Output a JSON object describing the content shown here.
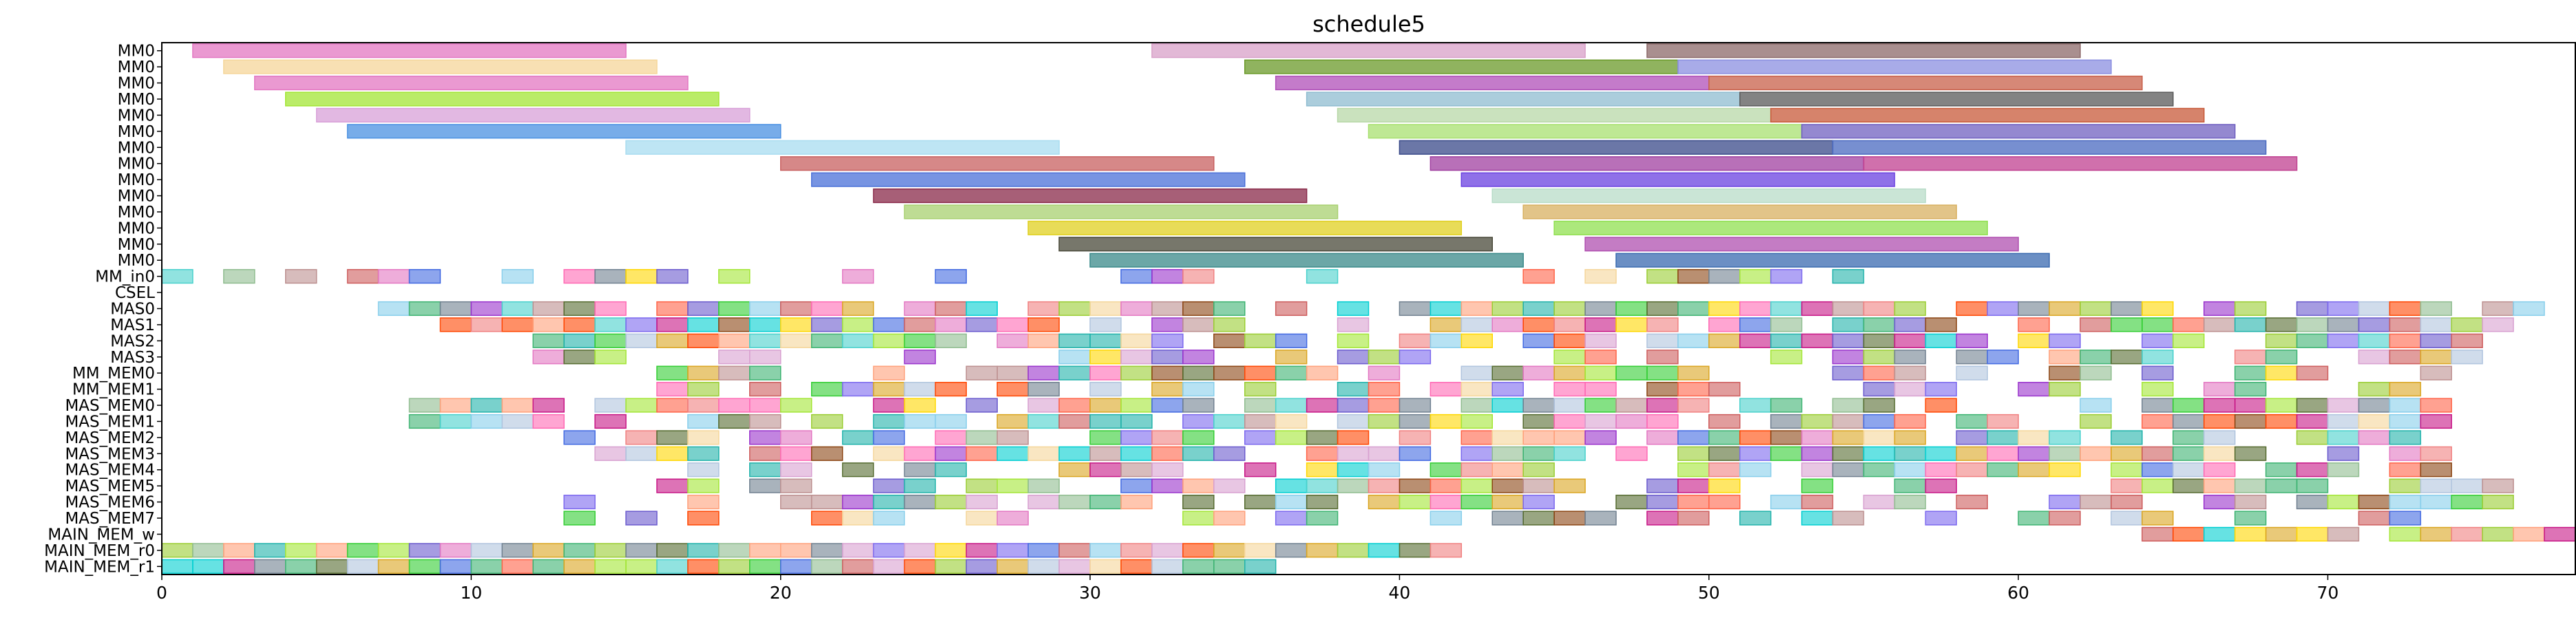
{
  "chart_data": {
    "type": "gantt",
    "title": "schedule5",
    "xlabel": "",
    "ylabel": "",
    "xlim": [
      0,
      78
    ],
    "x_ticks": [
      0,
      10,
      20,
      30,
      40,
      50,
      60,
      70
    ],
    "grid": false,
    "legend": "none",
    "rows": [
      "MM0",
      "MM0",
      "MM0",
      "MM0",
      "MM0",
      "MM0",
      "MM0",
      "MM0",
      "MM0",
      "MM0",
      "MM0",
      "MM0",
      "MM0",
      "MM0",
      "MM_in0",
      "CSEL",
      "MAS0",
      "MAS1",
      "MAS2",
      "MAS3",
      "MM_MEM0",
      "MM_MEM1",
      "MAS_MEM0",
      "MAS_MEM1",
      "MAS_MEM2",
      "MAS_MEM3",
      "MAS_MEM4",
      "MAS_MEM5",
      "MAS_MEM6",
      "MAS_MEM7",
      "MAIN_MEM_w",
      "MAIN_MEM_r0",
      "MAIN_MEM_r1"
    ],
    "palette": [
      "#e377c2",
      "#f5d69a",
      "#9acd32",
      "#a3e635",
      "#87ceeb",
      "#b0c4de",
      "#d8a0d0",
      "#8b4513",
      "#cd5c5c",
      "#6a5acd",
      "#48d1cc",
      "#ffa07a",
      "#708090",
      "#ff69b4",
      "#32cd32",
      "#4169e1",
      "#daa520",
      "#9932cc",
      "#20b2aa",
      "#f08080",
      "#7b68ee",
      "#3cb371",
      "#ff6347",
      "#bc8f8f",
      "#ffd700",
      "#00ced1",
      "#c71585",
      "#8fbc8f",
      "#ff4500",
      "#556b2f"
    ],
    "bars": [
      {
        "row": 0,
        "start": 1,
        "end": 15,
        "color": "#e377c2"
      },
      {
        "row": 0,
        "start": 32,
        "end": 46,
        "color": "#d8a0c8"
      },
      {
        "row": 0,
        "start": 48,
        "end": 62,
        "color": "#8c6a6a"
      },
      {
        "row": 1,
        "start": 2,
        "end": 16,
        "color": "#f5d69a"
      },
      {
        "row": 1,
        "start": 35,
        "end": 49,
        "color": "#6b9a2a"
      },
      {
        "row": 1,
        "start": 49,
        "end": 63,
        "color": "#8b8fe0"
      },
      {
        "row": 2,
        "start": 3,
        "end": 17,
        "color": "#e377c2"
      },
      {
        "row": 2,
        "start": 36,
        "end": 50,
        "color": "#b04fb8"
      },
      {
        "row": 2,
        "start": 50,
        "end": 64,
        "color": "#c8604a"
      },
      {
        "row": 3,
        "start": 4,
        "end": 18,
        "color": "#a3e635"
      },
      {
        "row": 3,
        "start": 37,
        "end": 51,
        "color": "#8fbcd0"
      },
      {
        "row": 3,
        "start": 51,
        "end": 65,
        "color": "#5a5a5a"
      },
      {
        "row": 4,
        "start": 5,
        "end": 19,
        "color": "#d8a0d8"
      },
      {
        "row": 4,
        "start": 38,
        "end": 52,
        "color": "#b8d8a8"
      },
      {
        "row": 4,
        "start": 52,
        "end": 66,
        "color": "#c85a3a"
      },
      {
        "row": 5,
        "start": 6,
        "end": 20,
        "color": "#4a90e2"
      },
      {
        "row": 5,
        "start": 39,
        "end": 53,
        "color": "#a8e070"
      },
      {
        "row": 5,
        "start": 53,
        "end": 67,
        "color": "#7060c0"
      },
      {
        "row": 6,
        "start": 15,
        "end": 29,
        "color": "#a8dcf0"
      },
      {
        "row": 6,
        "start": 40,
        "end": 54,
        "color": "#3a4a8a"
      },
      {
        "row": 6,
        "start": 54,
        "end": 68,
        "color": "#4a6ac0"
      },
      {
        "row": 7,
        "start": 20,
        "end": 34,
        "color": "#c86060"
      },
      {
        "row": 7,
        "start": 41,
        "end": 55,
        "color": "#a040a0"
      },
      {
        "row": 7,
        "start": 55,
        "end": 69,
        "color": "#c04090"
      },
      {
        "row": 8,
        "start": 21,
        "end": 35,
        "color": "#4a70d8"
      },
      {
        "row": 8,
        "start": 42,
        "end": 56,
        "color": "#6a40e0"
      },
      {
        "row": 9,
        "start": 23,
        "end": 37,
        "color": "#8a2a4a"
      },
      {
        "row": 9,
        "start": 43,
        "end": 57,
        "color": "#b8dcc8"
      },
      {
        "row": 10,
        "start": 24,
        "end": 38,
        "color": "#a8d070"
      },
      {
        "row": 10,
        "start": 44,
        "end": 58,
        "color": "#d8b060"
      },
      {
        "row": 11,
        "start": 28,
        "end": 42,
        "color": "#e0d020"
      },
      {
        "row": 11,
        "start": 45,
        "end": 59,
        "color": "#90e050"
      },
      {
        "row": 12,
        "start": 29,
        "end": 43,
        "color": "#4a4a3a"
      },
      {
        "row": 12,
        "start": 46,
        "end": 60,
        "color": "#b050b0"
      },
      {
        "row": 13,
        "start": 30,
        "end": 44,
        "color": "#3a8a8a"
      },
      {
        "row": 13,
        "start": 47,
        "end": 61,
        "color": "#3a6ab0"
      }
    ],
    "dense_rows": [
      {
        "row": 14,
        "start": 0,
        "end": 56,
        "density": 0.55,
        "seed": 1
      },
      {
        "row": 16,
        "start": 7,
        "end": 77,
        "density": 0.8,
        "seed": 2
      },
      {
        "row": 17,
        "start": 9,
        "end": 76,
        "density": 0.75,
        "seed": 3
      },
      {
        "row": 18,
        "start": 12,
        "end": 75,
        "density": 0.75,
        "seed": 4
      },
      {
        "row": 19,
        "start": 10,
        "end": 75,
        "density": 0.6,
        "seed": 5
      },
      {
        "row": 20,
        "start": 15,
        "end": 75,
        "density": 0.65,
        "seed": 6
      },
      {
        "row": 21,
        "start": 15,
        "end": 74,
        "density": 0.55,
        "seed": 7
      },
      {
        "row": 22,
        "start": 8,
        "end": 74,
        "density": 0.75,
        "seed": 8
      },
      {
        "row": 23,
        "start": 8,
        "end": 74,
        "density": 0.75,
        "seed": 9
      },
      {
        "row": 24,
        "start": 13,
        "end": 74,
        "density": 0.7,
        "seed": 10
      },
      {
        "row": 25,
        "start": 13,
        "end": 74,
        "density": 0.8,
        "seed": 11
      },
      {
        "row": 26,
        "start": 16,
        "end": 74,
        "density": 0.7,
        "seed": 12
      },
      {
        "row": 27,
        "start": 16,
        "end": 76,
        "density": 0.65,
        "seed": 13
      },
      {
        "row": 28,
        "start": 13,
        "end": 76,
        "density": 0.7,
        "seed": 14
      },
      {
        "row": 29,
        "start": 13,
        "end": 74,
        "density": 0.6,
        "seed": 15
      },
      {
        "row": 30,
        "start": 64,
        "end": 78,
        "density": 0.95,
        "seed": 16
      },
      {
        "row": 31,
        "start": 0,
        "end": 42,
        "density": 1.0,
        "seed": 17
      },
      {
        "row": 32,
        "start": 0,
        "end": 36,
        "density": 1.0,
        "seed": 18
      }
    ]
  }
}
